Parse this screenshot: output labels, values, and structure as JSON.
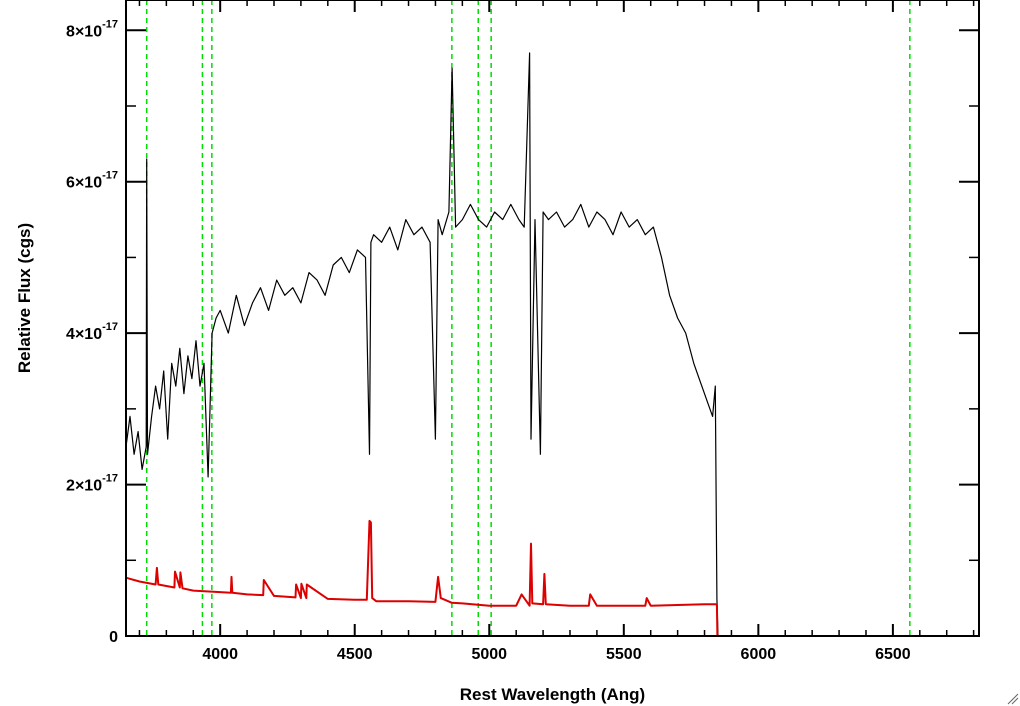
{
  "chart_data": {
    "type": "line",
    "title": "",
    "xlabel": "Rest Wavelength (Ang)",
    "ylabel": "Relative Flux (cgs)",
    "xlim": [
      3650,
      6820
    ],
    "ylim": [
      0,
      8.4e-17
    ],
    "x_ticks": [
      4000,
      4500,
      5000,
      5500,
      6000,
      6500
    ],
    "x_tick_labels": [
      "4000",
      "4500",
      "5000",
      "5500",
      "6000",
      "6500"
    ],
    "y_ticks": [
      0,
      2e-17,
      4e-17,
      6e-17,
      8e-17
    ],
    "y_tick_labels": [
      {
        "mantissa": "0",
        "exponent": ""
      },
      {
        "mantissa": "2×10",
        "exponent": "-17"
      },
      {
        "mantissa": "4×10",
        "exponent": "-17"
      },
      {
        "mantissa": "6×10",
        "exponent": "-17"
      },
      {
        "mantissa": "8×10",
        "exponent": "-17"
      }
    ],
    "grid": false,
    "reference_lines": {
      "color": "#00dd00",
      "style": "dashed",
      "x": [
        3727,
        3934,
        3969,
        4861,
        4959,
        5007,
        6563
      ]
    },
    "series": [
      {
        "color": "#000000",
        "x": [
          3650,
          3665,
          3680,
          3695,
          3710,
          3725,
          3727,
          3730,
          3745,
          3760,
          3775,
          3790,
          3805,
          3820,
          3835,
          3850,
          3865,
          3880,
          3895,
          3910,
          3925,
          3940,
          3955,
          3970,
          3985,
          4000,
          4030,
          4060,
          4090,
          4120,
          4150,
          4180,
          4210,
          4240,
          4270,
          4300,
          4330,
          4360,
          4390,
          4420,
          4450,
          4480,
          4510,
          4540,
          4555,
          4560,
          4570,
          4600,
          4630,
          4660,
          4690,
          4720,
          4750,
          4780,
          4800,
          4810,
          4825,
          4850,
          4862,
          4875,
          4900,
          4930,
          4960,
          4990,
          5020,
          5050,
          5080,
          5110,
          5130,
          5150,
          5155,
          5170,
          5190,
          5200,
          5220,
          5250,
          5280,
          5310,
          5340,
          5370,
          5400,
          5430,
          5460,
          5490,
          5520,
          5550,
          5580,
          5610,
          5640,
          5670,
          5700,
          5730,
          5760,
          5790,
          5810,
          5830,
          5840,
          5846,
          5850,
          5860,
          5900,
          6000,
          6200,
          6400,
          6600,
          6820
        ],
        "y": [
          2.5e-17,
          2.9e-17,
          2.4e-17,
          2.7e-17,
          2.2e-17,
          2.5e-17,
          6.3e-17,
          2.4e-17,
          2.9e-17,
          3.3e-17,
          3e-17,
          3.5e-17,
          2.6e-17,
          3.6e-17,
          3.3e-17,
          3.8e-17,
          3.2e-17,
          3.7e-17,
          3.4e-17,
          3.9e-17,
          3.3e-17,
          3.6e-17,
          2.1e-17,
          4e-17,
          4.2e-17,
          4.3e-17,
          4e-17,
          4.5e-17,
          4.1e-17,
          4.4e-17,
          4.6e-17,
          4.3e-17,
          4.7e-17,
          4.5e-17,
          4.6e-17,
          4.4e-17,
          4.8e-17,
          4.7e-17,
          4.5e-17,
          4.9e-17,
          5e-17,
          4.8e-17,
          5.1e-17,
          5e-17,
          2.4e-17,
          5.2e-17,
          5.3e-17,
          5.2e-17,
          5.4e-17,
          5.1e-17,
          5.5e-17,
          5.3e-17,
          5.4e-17,
          5.2e-17,
          2.6e-17,
          5.5e-17,
          5.3e-17,
          5.6e-17,
          7.5e-17,
          5.4e-17,
          5.5e-17,
          5.7e-17,
          5.5e-17,
          5.4e-17,
          5.6e-17,
          5.5e-17,
          5.7e-17,
          5.5e-17,
          5.4e-17,
          7.7e-17,
          2.6e-17,
          5.5e-17,
          2.4e-17,
          5.6e-17,
          5.5e-17,
          5.6e-17,
          5.4e-17,
          5.5e-17,
          5.7e-17,
          5.4e-17,
          5.6e-17,
          5.5e-17,
          5.3e-17,
          5.6e-17,
          5.4e-17,
          5.5e-17,
          5.3e-17,
          5.4e-17,
          5e-17,
          4.5e-17,
          4.2e-17,
          4e-17,
          3.6e-17,
          3.3e-17,
          3.1e-17,
          2.9e-17,
          3.3e-17,
          5e-18,
          0,
          0,
          0,
          0,
          0,
          0,
          0,
          0
        ]
      },
      {
        "color": "#dd0000",
        "x": [
          3650,
          3700,
          3760,
          3765,
          3770,
          3800,
          3830,
          3832,
          3850,
          3852,
          3860,
          3900,
          4000,
          4040,
          4042,
          4045,
          4100,
          4160,
          4162,
          4200,
          4280,
          4282,
          4300,
          4302,
          4320,
          4322,
          4400,
          4500,
          4545,
          4555,
          4560,
          4565,
          4580,
          4700,
          4800,
          4810,
          4820,
          4860,
          4900,
          5000,
          5100,
          5120,
          5150,
          5155,
          5160,
          5200,
          5205,
          5210,
          5300,
          5370,
          5375,
          5400,
          5500,
          5580,
          5585,
          5600,
          5700,
          5800,
          5846,
          5848,
          5900,
          6000,
          6200,
          6400,
          6600,
          6820
        ],
        "y": [
          7.7e-18,
          7.2e-18,
          6.8e-18,
          9e-18,
          6.8e-18,
          6.6e-18,
          6.4e-18,
          8.5e-18,
          6.4e-18,
          8.4e-18,
          6.3e-18,
          6e-18,
          5.8e-18,
          5.7e-18,
          7.8e-18,
          5.7e-18,
          5.5e-18,
          5.4e-18,
          7.4e-18,
          5.3e-18,
          5.1e-18,
          6.8e-18,
          5e-18,
          6.9e-18,
          5e-18,
          6.8e-18,
          4.9e-18,
          4.8e-18,
          4.8e-18,
          1.52e-17,
          1.5e-17,
          5e-18,
          4.6e-18,
          4.6e-18,
          4.5e-18,
          7.8e-18,
          5e-18,
          4.4e-18,
          4.3e-18,
          4e-18,
          4e-18,
          5.5e-18,
          4e-18,
          1.22e-17,
          4.3e-18,
          4.2e-18,
          8.2e-18,
          4.2e-18,
          4e-18,
          4e-18,
          5.5e-18,
          4e-18,
          4e-18,
          4e-18,
          5e-18,
          4e-18,
          4.1e-18,
          4.2e-18,
          4.2e-18,
          0,
          0,
          0,
          0,
          0,
          0,
          0
        ]
      }
    ]
  }
}
